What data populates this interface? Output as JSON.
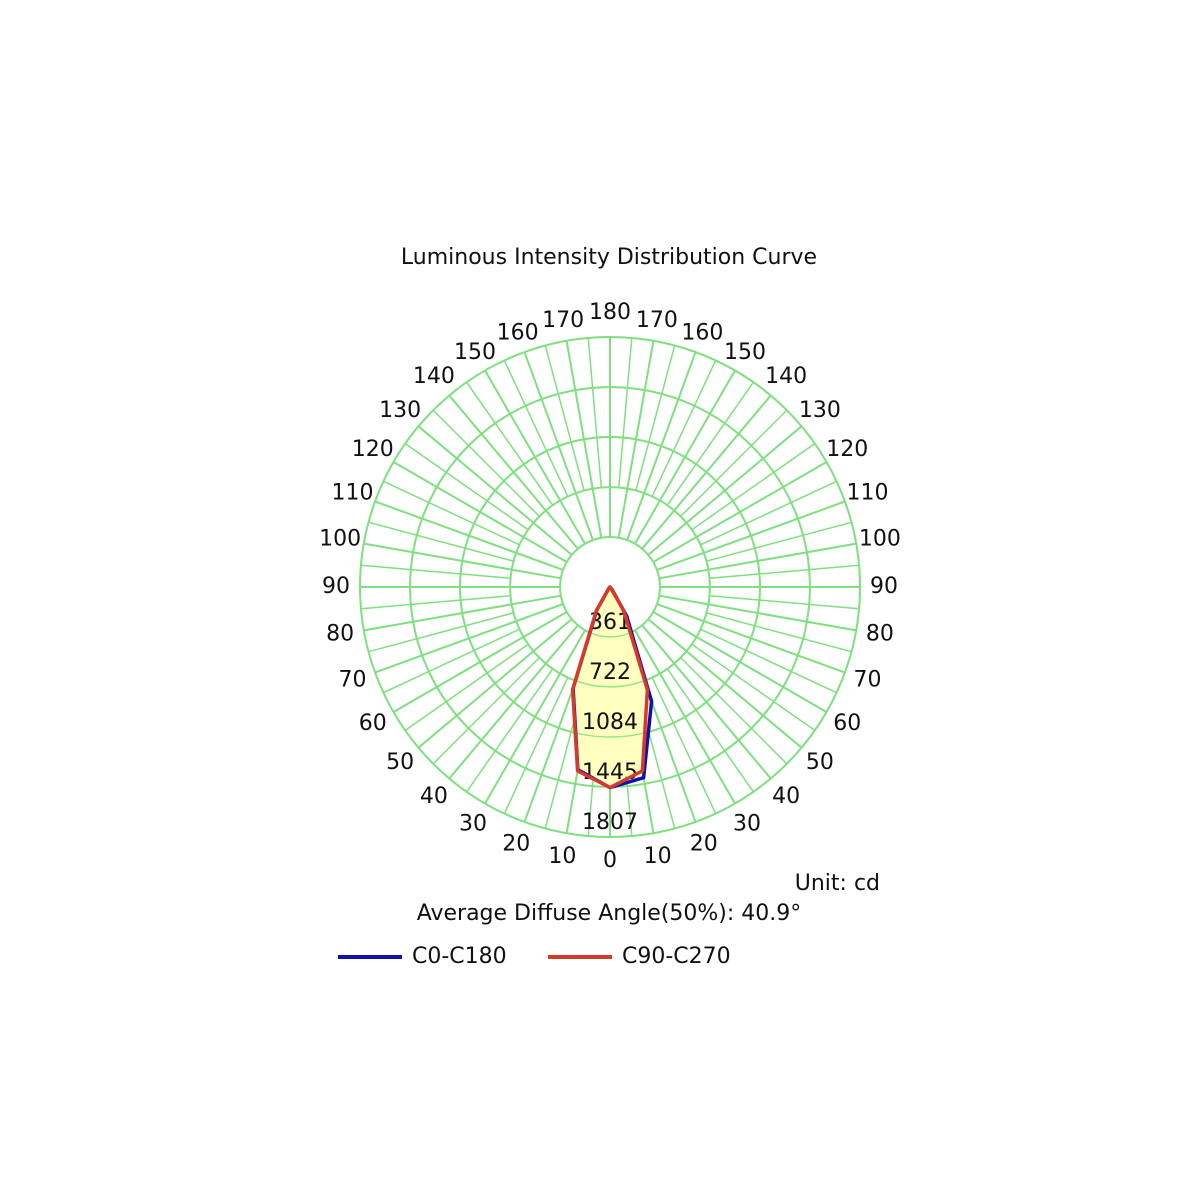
{
  "chart_data": {
    "type": "polar",
    "title": "Luminous Intensity Distribution Curve",
    "unit_label": "Unit: cd",
    "annotation": "Average Diffuse Angle(50%): 40.9°",
    "x": [
      -90,
      -80,
      -70,
      -60,
      -50,
      -40,
      -30,
      -20,
      -10,
      0,
      10,
      20,
      30,
      40,
      50,
      60,
      70,
      80,
      90
    ],
    "series": [
      {
        "name": "C0-C180",
        "color": "#1010b0",
        "values": [
          0,
          0,
          0,
          0,
          0,
          15,
          190,
          780,
          1340,
          1450,
          1400,
          880,
          240,
          20,
          0,
          0,
          0,
          0,
          0
        ]
      },
      {
        "name": "C90-C270",
        "color": "#d83a2a",
        "values": [
          0,
          0,
          0,
          0,
          0,
          10,
          200,
          790,
          1350,
          1450,
          1350,
          790,
          200,
          10,
          0,
          0,
          0,
          0,
          0
        ]
      }
    ],
    "rlim": [
      0,
      1807
    ],
    "rticks": [
      361,
      722,
      1084,
      1445,
      1807
    ],
    "angle_ticks": [
      0,
      10,
      20,
      30,
      40,
      50,
      60,
      70,
      80,
      90,
      100,
      110,
      120,
      130,
      140,
      150,
      160,
      170,
      180
    ],
    "grid_color": "#7ee07e",
    "fill_color": "#ffffc0"
  }
}
